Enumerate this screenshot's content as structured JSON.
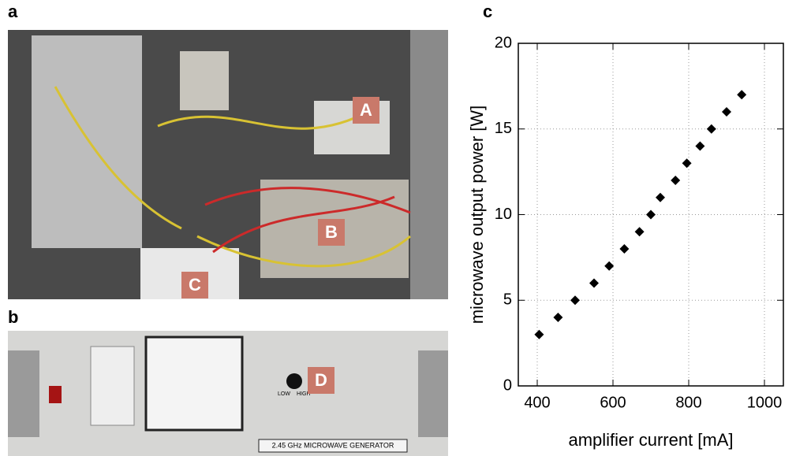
{
  "panel_labels": [
    "a",
    "b",
    "c"
  ],
  "photo_labels": [
    "A",
    "B",
    "C",
    "D"
  ],
  "generator_plate": "2.45 GHz MICROWAVE GENERATOR",
  "knob_labels": [
    "LOW",
    "HIGH"
  ],
  "chart_data": {
    "type": "scatter",
    "xlabel": "amplifier current [mA]",
    "ylabel": "microwave output power [W]",
    "x": [
      405,
      455,
      500,
      550,
      590,
      630,
      670,
      700,
      725,
      765,
      795,
      830,
      860,
      900,
      940
    ],
    "values": [
      3,
      4,
      5,
      6,
      7,
      8,
      9,
      10,
      11,
      12,
      13,
      14,
      15,
      16,
      17
    ],
    "color": "#000000",
    "xlim": [
      350,
      1050
    ],
    "xticks": [
      400,
      600,
      800,
      1000
    ],
    "ylim": [
      0,
      20
    ],
    "yticks": [
      0,
      5,
      10,
      15,
      20
    ],
    "grid": true
  }
}
